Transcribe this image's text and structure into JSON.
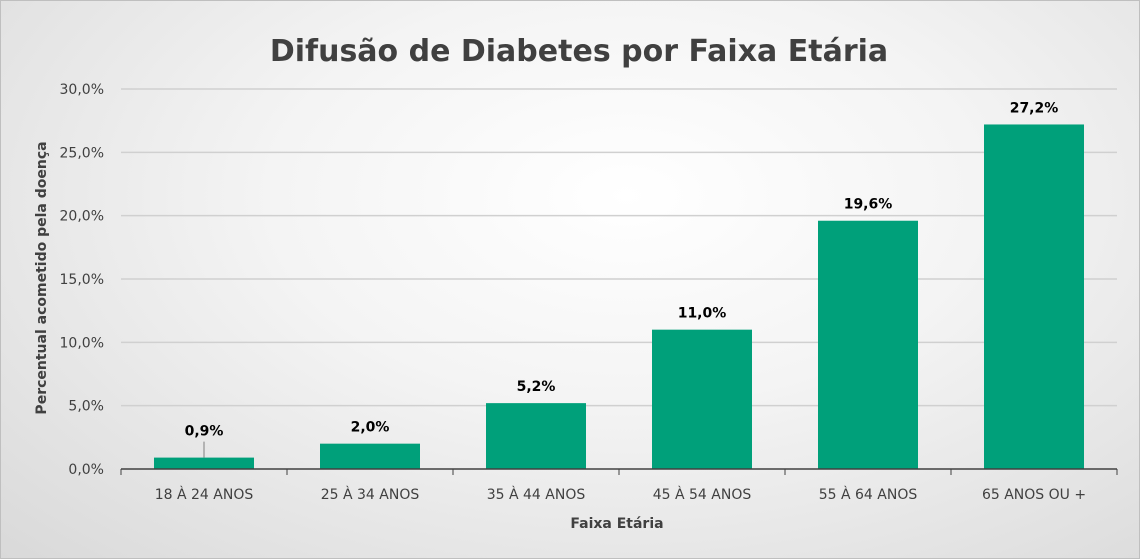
{
  "chart_data": {
    "type": "bar",
    "title": "Difusão de Diabetes por Faixa Etária",
    "xlabel": "Faixa Etária",
    "ylabel": "Percentual acometido pela doença",
    "categories": [
      "18 À 24 ANOS",
      "25 À 34 ANOS",
      "35 À 44 ANOS",
      "45 À 54 ANOS",
      "55 À 64 ANOS",
      "65 ANOS OU +"
    ],
    "values": [
      0.9,
      2.0,
      5.2,
      11.0,
      19.6,
      27.2
    ],
    "data_labels": [
      "0,9%",
      "2,0%",
      "5,2%",
      "11,0%",
      "19,6%",
      "27,2%"
    ],
    "yticks": [
      0,
      5,
      10,
      15,
      20,
      25,
      30
    ],
    "ytick_labels": [
      "0,0%",
      "5,0%",
      "10,0%",
      "15,0%",
      "20,0%",
      "25,0%",
      "30,0%"
    ],
    "ylim": [
      0,
      30
    ],
    "grid": true,
    "legend": "none",
    "colors": {
      "bar": "#00A07A",
      "grid": "#d0d0d0",
      "axis": "#404040"
    }
  }
}
